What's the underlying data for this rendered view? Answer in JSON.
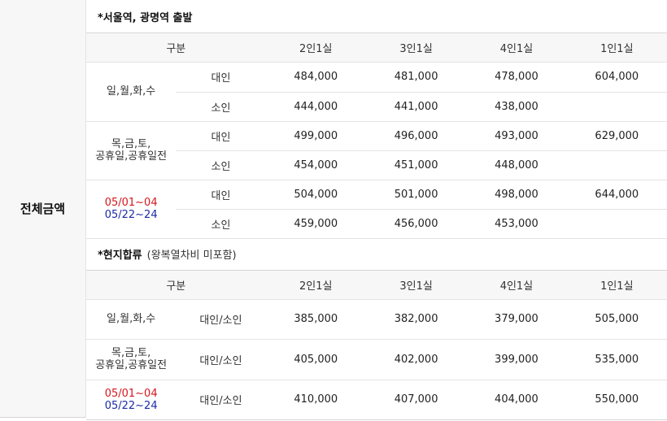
{
  "side_label": "전체금액",
  "section1": {
    "title": "*서울역, 광명역 출발",
    "headers": [
      "구분",
      "2인1실",
      "3인1실",
      "4인1실",
      "1인1실"
    ],
    "groups": [
      {
        "day": [
          "일,월,화,수"
        ],
        "rows": [
          {
            "type": "대인",
            "p2": "484,000",
            "p3": "481,000",
            "p4": "478,000",
            "p1": "604,000"
          },
          {
            "type": "소인",
            "p2": "444,000",
            "p3": "441,000",
            "p4": "438,000",
            "p1": ""
          }
        ]
      },
      {
        "day": [
          "목,금,토,",
          "공휴일,공휴일전"
        ],
        "rows": [
          {
            "type": "대인",
            "p2": "499,000",
            "p3": "496,000",
            "p4": "493,000",
            "p1": "629,000"
          },
          {
            "type": "소인",
            "p2": "454,000",
            "p3": "451,000",
            "p4": "448,000",
            "p1": ""
          }
        ]
      },
      {
        "day_red": "05/01~04",
        "day_blue": "05/22~24",
        "rows": [
          {
            "type": "대인",
            "p2": "504,000",
            "p3": "501,000",
            "p4": "498,000",
            "p1": "644,000"
          },
          {
            "type": "소인",
            "p2": "459,000",
            "p3": "456,000",
            "p4": "453,000",
            "p1": ""
          }
        ]
      }
    ]
  },
  "section2": {
    "title": "*현지합류",
    "note": "(왕복열차비 미포함)",
    "headers": [
      "구분",
      "2인1실",
      "3인1실",
      "4인1실",
      "1인1실"
    ],
    "rows": [
      {
        "day": [
          "일,월,화,수"
        ],
        "type": "대인/소인",
        "p2": "385,000",
        "p3": "382,000",
        "p4": "379,000",
        "p1": "505,000"
      },
      {
        "day": [
          "목,금,토,",
          "공휴일,공휴일전"
        ],
        "type": "대인/소인",
        "p2": "405,000",
        "p3": "402,000",
        "p4": "399,000",
        "p1": "535,000"
      },
      {
        "day_red": "05/01~04",
        "day_blue": "05/22~24",
        "type": "대인/소인",
        "p2": "410,000",
        "p3": "407,000",
        "p4": "404,000",
        "p1": "550,000"
      }
    ]
  }
}
